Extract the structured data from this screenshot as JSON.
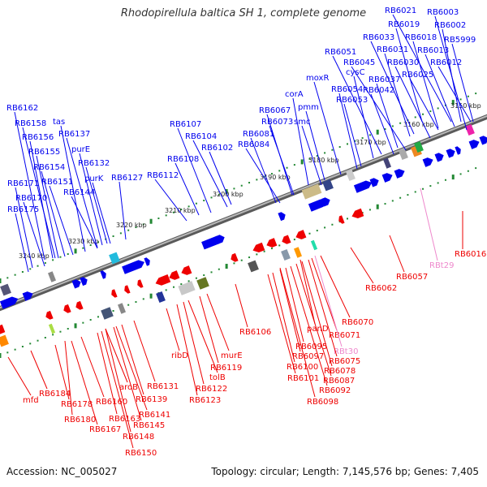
{
  "title": "Rhodopirellula baltica SH 1, complete genome",
  "footer": {
    "accession": "Accession: NC_005027",
    "stats": "Topology: circular; Length: 7,145,576 bp; Genes: 7,405"
  },
  "colors": {
    "forward_strand": "#0000ee",
    "reverse_strand": "#ee0000",
    "rna": "#ee88cc",
    "backbone": "#888888",
    "ticks": "#228833"
  },
  "scale_labels": [
    "3150 kbp",
    "3160 kbp",
    "3170 kbp",
    "3180 kbp",
    "3190 kbp",
    "3200 kbp",
    "3210 kbp",
    "3220 kbp",
    "3230 kbp",
    "3240 kbp"
  ],
  "forward_genes": [
    "RB6021",
    "RB6003",
    "RB6019",
    "RB6002",
    "RB6033",
    "RB6018",
    "RB5999",
    "RB6031",
    "RB6013",
    "RB6051",
    "RB6045",
    "RB6030",
    "RB6012",
    "cysC",
    "RB6025",
    "moxR",
    "RB6037",
    "RB6054",
    "RB6042",
    "corA",
    "RB6053",
    "RB6067",
    "pmm",
    "RB6073",
    "smc",
    "RB6081",
    "RB6084",
    "RB6107",
    "RB6104",
    "RB6102",
    "RB6108",
    "RB6112",
    "RB6162",
    "RB6158",
    "tas",
    "RB6137",
    "RB6156",
    "purE",
    "RB6155",
    "RB6132",
    "RB6154",
    "purK",
    "RB6127",
    "RB6151",
    "RB6171",
    "RB6144",
    "RB6170",
    "RB6175"
  ],
  "reverse_genes": [
    "RB6016",
    "RBt29",
    "RB6057",
    "RB6062",
    "RB6070",
    "panD",
    "RB6071",
    "RBt30",
    "RB6095",
    "RB6075",
    "RB6097",
    "RB6078",
    "RB6100",
    "RB6087",
    "RB6101",
    "RB6092",
    "RB6098",
    "RB6106",
    "ribD",
    "RB6119",
    "murE",
    "tolB",
    "RB6122",
    "RB6123",
    "RB6131",
    "aroB",
    "RB6139",
    "RB6141",
    "RB6145",
    "RB6160",
    "RB6163",
    "RB6167",
    "RB6148",
    "RB6150",
    "RB6178",
    "RB6180",
    "RB6184",
    "mfd"
  ]
}
